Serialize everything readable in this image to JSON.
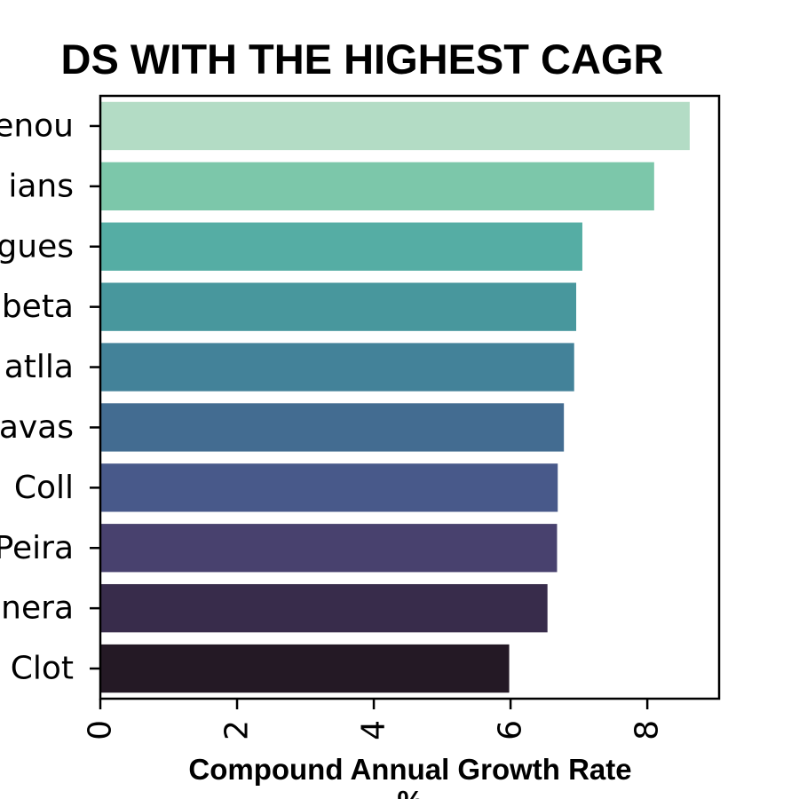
{
  "chart_data": {
    "type": "bar",
    "orientation": "horizontal",
    "title": "DS WITH THE HIGHEST CAGR",
    "xlabel": "Compound Annual Growth Rate",
    "xlabel_unit": "%",
    "categories": [
      "enou",
      "ians",
      "gues",
      "beta",
      "atlla",
      "avas",
      "Coll",
      "Peira",
      "nera",
      "Clot"
    ],
    "values": [
      8.62,
      8.1,
      7.05,
      6.96,
      6.93,
      6.78,
      6.69,
      6.68,
      6.54,
      5.98
    ],
    "xlim": [
      0,
      9.05
    ],
    "xticks": [
      "0",
      "2",
      "4",
      "6",
      "8"
    ],
    "colors": [
      "#b3dcc5",
      "#7cc7aa",
      "#55ada4",
      "#48979d",
      "#438299",
      "#436c91",
      "#48598a",
      "#48416e",
      "#382c4b",
      "#241925"
    ],
    "grid": false,
    "legend": "none"
  }
}
